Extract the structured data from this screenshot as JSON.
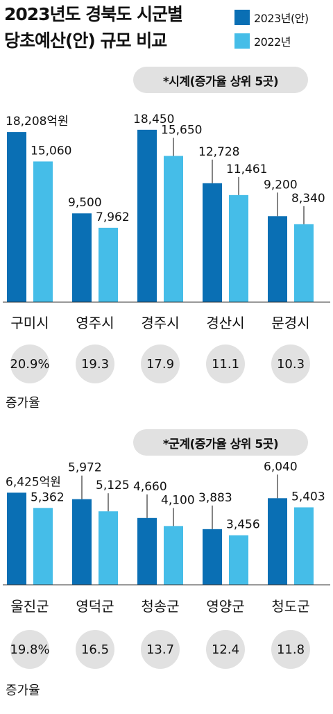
{
  "title_line1": "2023년도 경북도 시군별",
  "title_line2": "당초예산(안) 규모 비교",
  "legend": [
    {
      "label": "2023년(안)",
      "color": "#0a6fb4"
    },
    {
      "label": "2022년",
      "color": "#45bde8"
    }
  ],
  "colors": {
    "pill_bg": "#e1e1e1",
    "baseline": "#333333",
    "leader": "#333333"
  },
  "chart_data": [
    {
      "type": "bar",
      "pill_label": "*시계(증가율 상위 5곳)",
      "categories": [
        "구미시",
        "영주시",
        "경주시",
        "경산시",
        "문경시"
      ],
      "series": [
        {
          "name": "2023년(안)",
          "values": [
            18208,
            9500,
            18450,
            12728,
            9200
          ]
        },
        {
          "name": "2022년",
          "values": [
            15060,
            7962,
            15650,
            11461,
            8340
          ]
        }
      ],
      "value_labels_2023": [
        "18,208억원",
        "9,500",
        "18,450",
        "12,728",
        "9,200"
      ],
      "value_labels_2022": [
        "15,060",
        "7,962",
        "15,650",
        "11,461",
        "8,340"
      ],
      "growth_rates": [
        "20.9%",
        "19.3",
        "17.9",
        "11.1",
        "10.3"
      ],
      "growth_caption": "증가율",
      "ylim": [
        0,
        20000
      ]
    },
    {
      "type": "bar",
      "pill_label": "*군계(증가율 상위 5곳)",
      "categories": [
        "울진군",
        "영덕군",
        "청송군",
        "영양군",
        "청도군"
      ],
      "series": [
        {
          "name": "2023년(안)",
          "values": [
            6425,
            5972,
            4660,
            3883,
            6040
          ]
        },
        {
          "name": "2022년",
          "values": [
            5362,
            5125,
            4100,
            3456,
            5403
          ]
        }
      ],
      "value_labels_2023": [
        "6,425억원",
        "5,972",
        "4,660",
        "3,883",
        "6,040"
      ],
      "value_labels_2022": [
        "5,362",
        "5,125",
        "4,100",
        "3,456",
        "5,403"
      ],
      "growth_rates": [
        "19.8%",
        "16.5",
        "13.7",
        "12.4",
        "11.8"
      ],
      "growth_caption": "증가율",
      "ylim": [
        0,
        9300
      ]
    }
  ]
}
